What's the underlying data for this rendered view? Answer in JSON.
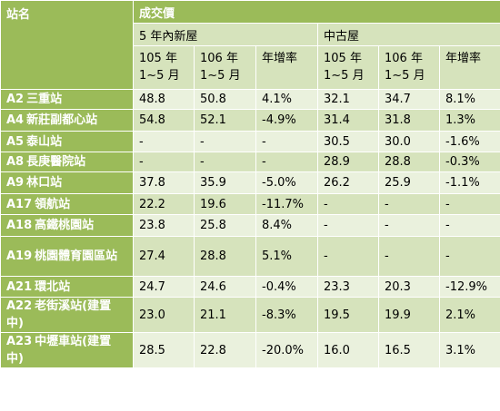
{
  "header": {
    "station_label": "站名",
    "price_label": "成交價",
    "new_house_label": "5 年內新屋",
    "old_house_label": "中古屋",
    "cols": [
      {
        "line1": "105 年",
        "line2": "1~5 月"
      },
      {
        "line1": "106 年",
        "line2": "1~5 月"
      },
      {
        "line1": "年增率",
        "line2": ""
      },
      {
        "line1": "105 年",
        "line2": "1~5 月"
      },
      {
        "line1": "106 年",
        "line2": "1~5 月"
      },
      {
        "line1": "年增率",
        "line2": ""
      }
    ]
  },
  "rows": [
    {
      "code": "A2",
      "name": "三重站",
      "v": [
        "48.8",
        "50.8",
        "4.1%",
        "32.1",
        "34.7",
        "8.1%"
      ]
    },
    {
      "code": "A4",
      "name": "新莊副都心站",
      "v": [
        "54.8",
        "52.1",
        "-4.9%",
        "31.4",
        "31.8",
        "1.3%"
      ]
    },
    {
      "code": "A5",
      "name": "泰山站",
      "v": [
        "-",
        "-",
        "-",
        "30.5",
        "30.0",
        "-1.6%"
      ]
    },
    {
      "code": "A8",
      "name": "長庚醫院站",
      "v": [
        "-",
        "-",
        "-",
        "28.9",
        "28.8",
        "-0.3%"
      ]
    },
    {
      "code": "A9",
      "name": "林口站",
      "v": [
        "37.8",
        "35.9",
        "-5.0%",
        "26.2",
        "25.9",
        "-1.1%"
      ]
    },
    {
      "code": "A17",
      "name": "領航站",
      "v": [
        "22.2",
        "19.6",
        "-11.7%",
        "-",
        "-",
        "-"
      ]
    },
    {
      "code": "A18",
      "name": "高鐵桃園站",
      "v": [
        "23.8",
        "25.8",
        "8.4%",
        "-",
        "-",
        "-"
      ]
    },
    {
      "code": "A19",
      "name": "桃園體育園區站",
      "v": [
        "27.4",
        "28.8",
        "5.1%",
        "-",
        "-",
        "-"
      ]
    },
    {
      "code": "A21",
      "name": "環北站",
      "v": [
        "24.7",
        "24.6",
        "-0.4%",
        "23.3",
        "20.3",
        "-12.9%"
      ]
    },
    {
      "code": "A22",
      "name": "老街溪站(建置中)",
      "v": [
        "23.0",
        "21.1",
        "-8.3%",
        "19.5",
        "19.9",
        "2.1%"
      ]
    },
    {
      "code": "A23",
      "name": "中壢車站(建置中)",
      "v": [
        "28.5",
        "22.8",
        "-20.0%",
        "16.0",
        "16.5",
        "3.1%"
      ]
    }
  ],
  "colors": {
    "header_green": "#9bbb59",
    "light_row": "#eaf1dd",
    "mid_row": "#d6e3bc"
  }
}
